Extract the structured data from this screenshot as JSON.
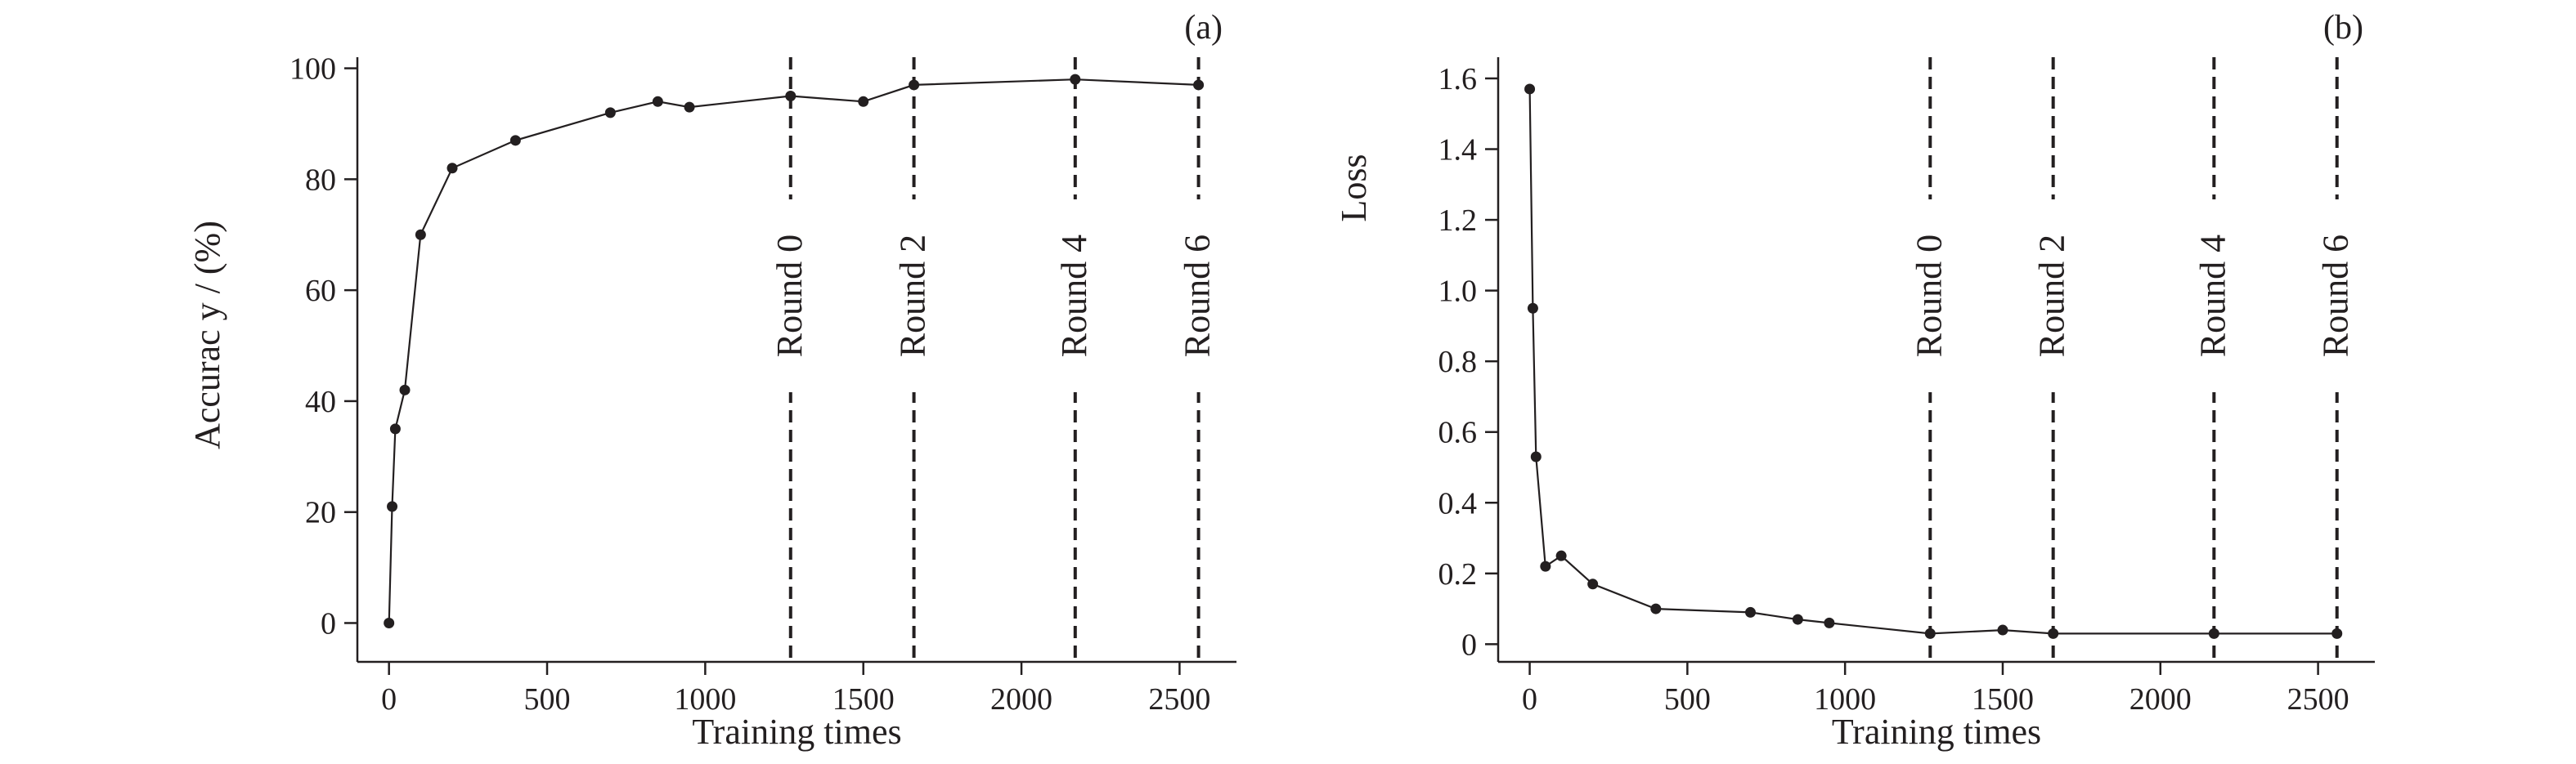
{
  "chart_data": [
    {
      "panel_label": "(a)",
      "type": "line",
      "xlabel": "Training times",
      "ylabel": "Accurac y / (%)",
      "xlim": [
        -100,
        2680
      ],
      "ylim": [
        -7,
        102
      ],
      "xticks": [
        0,
        500,
        1000,
        1500,
        2000,
        2500
      ],
      "xtick_labels": [
        "0",
        "500",
        "1000",
        "1500",
        "2000",
        "2500"
      ],
      "yticks": [
        0,
        20,
        40,
        60,
        80,
        100
      ],
      "ytick_labels": [
        "0",
        "20",
        "40",
        "60",
        "80",
        "100"
      ],
      "grid": false,
      "legend": "none",
      "color": "#231f20",
      "series": [
        {
          "x": [
            0,
            10,
            20,
            50,
            100,
            200,
            400,
            700,
            850,
            950,
            1270,
            1500,
            1660,
            2170,
            2560
          ],
          "y": [
            0,
            21,
            35,
            42,
            70,
            82,
            87,
            92,
            94,
            93,
            95,
            94,
            97,
            98,
            97
          ]
        }
      ],
      "annotations": [
        {
          "text": "Round 0",
          "x": 1270
        },
        {
          "text": "Round 2",
          "x": 1660
        },
        {
          "text": "Round 4",
          "x": 2170
        },
        {
          "text": "Round 6",
          "x": 2560
        }
      ]
    },
    {
      "panel_label": "(b)",
      "type": "line",
      "xlabel": "Training times",
      "ylabel": "Loss",
      "xlim": [
        -100,
        2680
      ],
      "ylim": [
        -0.05,
        1.66
      ],
      "xticks": [
        0,
        500,
        1000,
        1500,
        2000,
        2500
      ],
      "xtick_labels": [
        "0",
        "500",
        "1000",
        "1500",
        "2000",
        "2500"
      ],
      "yticks": [
        0,
        0.2,
        0.4,
        0.6,
        0.8,
        1.0,
        1.2,
        1.4,
        1.6
      ],
      "ytick_labels": [
        "0",
        "0.2",
        "0.4",
        "0.6",
        "0.8",
        "1.0",
        "1.2",
        "1.4",
        "1.6"
      ],
      "grid": false,
      "legend": "none",
      "color": "#231f20",
      "series": [
        {
          "x": [
            0,
            10,
            20,
            50,
            100,
            200,
            400,
            700,
            850,
            950,
            1270,
            1500,
            1660,
            2170,
            2560
          ],
          "y": [
            1.57,
            0.95,
            0.53,
            0.22,
            0.25,
            0.17,
            0.1,
            0.09,
            0.07,
            0.06,
            0.03,
            0.04,
            0.03,
            0.03,
            0.03
          ]
        }
      ],
      "annotations": [
        {
          "text": "Round 0",
          "x": 1270
        },
        {
          "text": "Round 2",
          "x": 1660
        },
        {
          "text": "Round 4",
          "x": 2170
        },
        {
          "text": "Round 6",
          "x": 2560
        }
      ]
    }
  ]
}
